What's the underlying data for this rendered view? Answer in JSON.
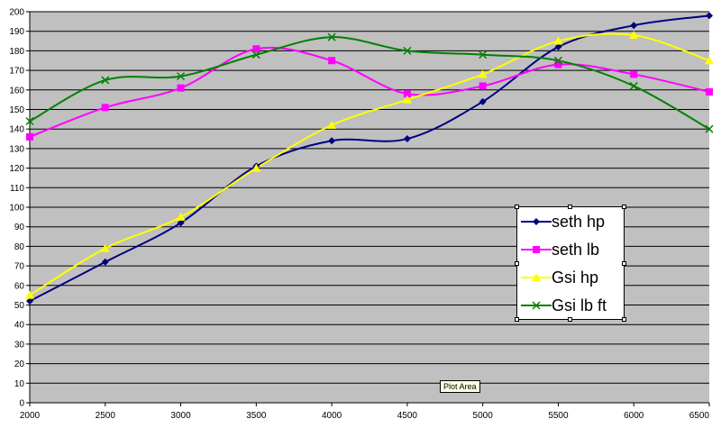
{
  "chart_data": {
    "type": "line",
    "x": [
      2000,
      2500,
      3000,
      3500,
      4000,
      4500,
      5000,
      5500,
      6000,
      6500
    ],
    "xlim": [
      2000,
      6500
    ],
    "ylim": [
      0,
      200
    ],
    "x_ticks": [
      2000,
      2500,
      3000,
      3500,
      4000,
      4500,
      5000,
      5500,
      6000,
      6500
    ],
    "y_ticks": [
      0,
      10,
      20,
      30,
      40,
      50,
      60,
      70,
      80,
      90,
      100,
      110,
      120,
      130,
      140,
      150,
      160,
      170,
      180,
      190,
      200
    ],
    "grid": true,
    "legend_position": "right",
    "plot_background": "#c0c0c0",
    "smoothed": true,
    "series": [
      {
        "name": "seth hp",
        "color": "#000080",
        "marker": "diamond",
        "values": [
          52,
          72,
          92,
          121,
          134,
          135,
          154,
          182,
          193,
          198
        ]
      },
      {
        "name": "seth lb",
        "color": "#ff00ff",
        "marker": "square",
        "values": [
          136,
          151,
          161,
          181,
          175,
          158,
          162,
          173,
          168,
          159
        ]
      },
      {
        "name": "Gsi hp",
        "color": "#ffff00",
        "marker": "triangle",
        "values": [
          55,
          79,
          95,
          120,
          142,
          155,
          168,
          185,
          188,
          175
        ]
      },
      {
        "name": "Gsi lb ft",
        "color": "#008000",
        "marker": "x",
        "values": [
          144,
          165,
          167,
          178,
          187,
          180,
          178,
          175,
          162,
          140
        ]
      }
    ]
  },
  "tooltip": "Plot Area"
}
